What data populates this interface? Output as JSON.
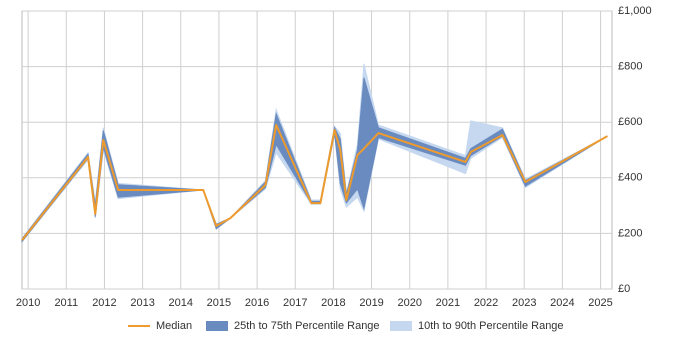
{
  "chart_data": {
    "type": "line",
    "x": [
      2009.84,
      2011.57,
      2011.76,
      2011.97,
      2012.36,
      2014.59,
      2014.93,
      2015.3,
      2016.22,
      2016.5,
      2017.42,
      2017.66,
      2018.03,
      2018.18,
      2018.34,
      2018.63,
      2018.8,
      2019.18,
      2021.46,
      2021.6,
      2022.43,
      2023.03,
      2025.18
    ],
    "series": [
      {
        "name": "Median",
        "color": "#ee9a2c",
        "values": [
          176,
          475,
          270,
          536,
          356,
          356,
          227,
          255,
          374,
          590,
          309,
          309,
          572,
          500,
          320,
          482,
          505,
          561,
          457,
          493,
          554,
          385,
          550
        ]
      }
    ],
    "bands": [
      {
        "name": "25th to 75th Percentile Range",
        "color": "#6a8bbf",
        "lower": [
          170,
          470,
          260,
          510,
          330,
          356,
          217,
          255,
          365,
          520,
          309,
          309,
          560,
          380,
          310,
          360,
          290,
          545,
          445,
          480,
          550,
          370,
          550
        ],
        "upper": [
          180,
          485,
          300,
          570,
          375,
          356,
          232,
          255,
          385,
          630,
          315,
          315,
          580,
          540,
          340,
          500,
          760,
          580,
          470,
          505,
          575,
          390,
          550
        ]
      },
      {
        "name": "10th to 90th Percentile Range",
        "color": "#c5d8ef",
        "lower": [
          170,
          465,
          255,
          500,
          325,
          356,
          215,
          255,
          360,
          490,
          305,
          305,
          555,
          360,
          295,
          330,
          280,
          540,
          415,
          470,
          545,
          365,
          550
        ],
        "upper": [
          182,
          490,
          310,
          580,
          380,
          356,
          235,
          255,
          390,
          645,
          320,
          320,
          585,
          560,
          345,
          520,
          810,
          590,
          480,
          605,
          580,
          395,
          550
        ]
      }
    ],
    "xlim": [
      2009.84,
      2025.3
    ],
    "xticks": [
      2010,
      2011,
      2012,
      2013,
      2014,
      2015,
      2016,
      2017,
      2018,
      2019,
      2020,
      2021,
      2022,
      2023,
      2024,
      2025
    ],
    "ylim": [
      0,
      1000
    ],
    "yticks": [
      {
        "value": 0,
        "label": "£0"
      },
      {
        "value": 200,
        "label": "£200"
      },
      {
        "value": 400,
        "label": "£400"
      },
      {
        "value": 600,
        "label": "£600"
      },
      {
        "value": 800,
        "label": "£800"
      },
      {
        "value": 1000,
        "label": "£1,000"
      }
    ],
    "grid": true
  }
}
